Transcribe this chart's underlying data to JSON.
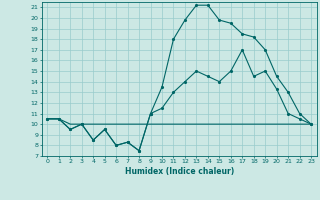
{
  "xlabel": "Humidex (Indice chaleur)",
  "bg_color": "#cce8e4",
  "grid_color": "#99cccc",
  "line_color": "#006666",
  "xlim": [
    -0.5,
    23.5
  ],
  "ylim": [
    7,
    21.5
  ],
  "xticks": [
    0,
    1,
    2,
    3,
    4,
    5,
    6,
    7,
    8,
    9,
    10,
    11,
    12,
    13,
    14,
    15,
    16,
    17,
    18,
    19,
    20,
    21,
    22,
    23
  ],
  "yticks": [
    7,
    8,
    9,
    10,
    11,
    12,
    13,
    14,
    15,
    16,
    17,
    18,
    19,
    20,
    21
  ],
  "line1_x": [
    0,
    1,
    2,
    3,
    4,
    5,
    6,
    7,
    8,
    9,
    10,
    11,
    12,
    13,
    14,
    15,
    16,
    17,
    18,
    19,
    20,
    21,
    22,
    23
  ],
  "line1_y": [
    10.5,
    10.5,
    10.0,
    10.0,
    10.0,
    10.0,
    10.0,
    10.0,
    10.0,
    10.0,
    10.0,
    10.0,
    10.0,
    10.0,
    10.0,
    10.0,
    10.0,
    10.0,
    10.0,
    10.0,
    10.0,
    10.0,
    10.0,
    10.0
  ],
  "line2_x": [
    0,
    1,
    2,
    3,
    4,
    5,
    6,
    7,
    8,
    9,
    10,
    11,
    12,
    13,
    14,
    15,
    16,
    17,
    18,
    19,
    20,
    21,
    22,
    23
  ],
  "line2_y": [
    10.5,
    10.5,
    9.5,
    10.0,
    8.5,
    9.5,
    8.0,
    8.3,
    7.5,
    11.0,
    11.5,
    13.0,
    14.0,
    15.0,
    14.5,
    14.0,
    15.0,
    17.0,
    14.5,
    15.0,
    13.3,
    11.0,
    10.5,
    10.0
  ],
  "line3_x": [
    0,
    1,
    2,
    3,
    4,
    5,
    6,
    7,
    8,
    9,
    10,
    11,
    12,
    13,
    14,
    15,
    16,
    17,
    18,
    19,
    20,
    21,
    22,
    23
  ],
  "line3_y": [
    10.5,
    10.5,
    9.5,
    10.0,
    8.5,
    9.5,
    8.0,
    8.3,
    7.5,
    11.0,
    13.5,
    18.0,
    19.8,
    21.2,
    21.2,
    19.8,
    19.5,
    18.5,
    18.2,
    17.0,
    14.5,
    13.0,
    11.0,
    10.0
  ]
}
